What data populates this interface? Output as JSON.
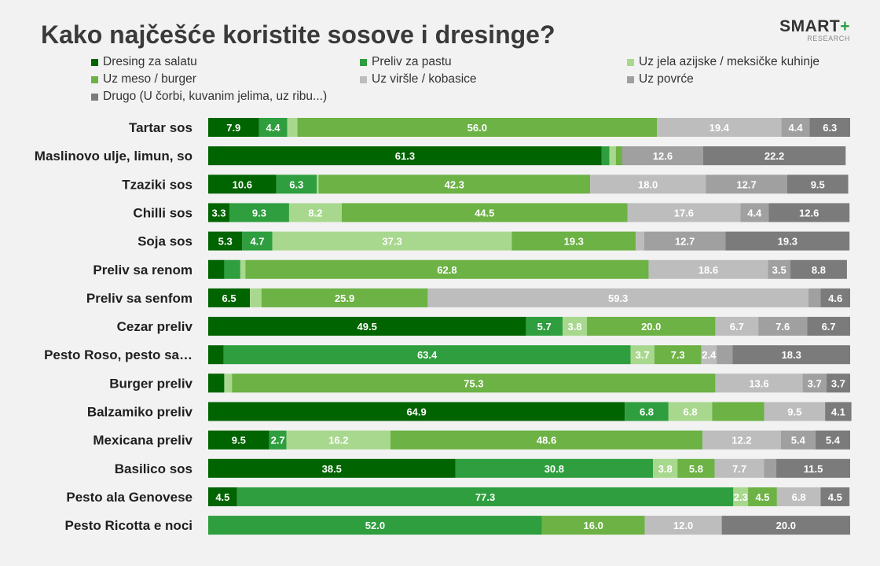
{
  "header": {
    "title": "Kako najčešće koristite sosove i dresinge?",
    "logo_text": "SMART",
    "logo_plus": "+",
    "logo_sub": "RESEARCH"
  },
  "legend": [
    {
      "label": "Dresing za salatu",
      "color": "#006400"
    },
    {
      "label": "Preliv za pastu",
      "color": "#2e9e3e"
    },
    {
      "label": "Uz jela azijske / meksičke kuhinje",
      "color": "#a8d88e"
    },
    {
      "label": "Uz meso / burger",
      "color": "#6cb244"
    },
    {
      "label": "Uz viršle / kobasice",
      "color": "#bdbdbd"
    },
    {
      "label": "Uz povrće",
      "color": "#a0a0a0"
    },
    {
      "label": "Drugo (U čorbi, kuvanim jelima, uz ribu...)",
      "color": "#7b7b7b"
    }
  ],
  "chart_data": {
    "type": "bar",
    "orientation": "horizontal",
    "stacked": true,
    "title": "Kako najčešće koristite sosove i dresinge?",
    "xlim": [
      0,
      100
    ],
    "categories": [
      "Tartar sos",
      "Maslinovo ulje, limun, so",
      "Tzaziki sos",
      "Chilli sos",
      "Soja sos",
      "Preliv sa renom",
      "Preliv sa senfom",
      "Cezar preliv",
      "Pesto Roso, pesto sa…",
      "Burger preliv",
      "Balzamiko preliv",
      "Mexicana preliv",
      "Basilico sos",
      "Pesto ala Genovese",
      "Pesto Ricotta e noci"
    ],
    "series": [
      {
        "name": "Dresing za salatu",
        "values": [
          7.9,
          61.3,
          10.6,
          3.3,
          5.3,
          2.5,
          6.5,
          49.5,
          2.4,
          2.5,
          64.9,
          9.5,
          38.5,
          4.5,
          0
        ]
      },
      {
        "name": "Preliv za pastu",
        "values": [
          4.4,
          1.2,
          6.3,
          9.3,
          4.7,
          2.5,
          0,
          5.7,
          63.4,
          0,
          6.8,
          2.7,
          30.8,
          77.3,
          52.0
        ]
      },
      {
        "name": "Uz jela azijske / meksičke kuhinje",
        "values": [
          1.6,
          1.0,
          0.3,
          8.2,
          37.3,
          0.8,
          1.8,
          3.8,
          3.7,
          1.2,
          6.8,
          16.2,
          3.8,
          2.3,
          0
        ]
      },
      {
        "name": "Uz meso / burger",
        "values": [
          56.0,
          1.0,
          42.3,
          44.5,
          19.3,
          62.8,
          25.9,
          20.0,
          7.3,
          75.3,
          8.1,
          48.6,
          5.8,
          4.5,
          16.0
        ]
      },
      {
        "name": "Uz viršle / kobasice",
        "values": [
          19.4,
          0,
          18.0,
          17.6,
          1.3,
          18.6,
          59.3,
          6.7,
          2.4,
          13.6,
          9.5,
          12.2,
          7.7,
          6.8,
          12.0
        ]
      },
      {
        "name": "Uz povrće",
        "values": [
          4.4,
          12.6,
          12.7,
          4.4,
          12.7,
          3.5,
          1.9,
          7.6,
          2.5,
          3.7,
          0,
          5.4,
          1.9,
          0,
          0
        ]
      },
      {
        "name": "Drugo (U čorbi, kuvanim jelima, uz ribu...)",
        "values": [
          6.3,
          22.2,
          9.5,
          12.6,
          19.3,
          8.8,
          4.6,
          6.7,
          18.3,
          3.7,
          4.1,
          5.4,
          11.5,
          4.5,
          20.0
        ]
      }
    ],
    "data_labels": [
      [
        "7.9",
        "4.4",
        "",
        "56.0",
        "19.4",
        "4.4",
        "6.3"
      ],
      [
        "61.3",
        "",
        "",
        "",
        "",
        "12.6",
        "22.2"
      ],
      [
        "10.6",
        "6.3",
        "",
        "42.3",
        "18.0",
        "12.7",
        "9.5"
      ],
      [
        "3.3",
        "9.3",
        "8.2",
        "44.5",
        "17.6",
        "4.4",
        "12.6"
      ],
      [
        "5.3",
        "4.7",
        "37.3",
        "19.3",
        "",
        "12.7",
        "19.3"
      ],
      [
        "",
        "",
        "",
        "62.8",
        "18.6",
        "3.5",
        "8.8"
      ],
      [
        "6.5",
        "",
        "",
        "25.9",
        "59.3",
        "",
        "4.6"
      ],
      [
        "49.5",
        "5.7",
        "3.8",
        "20.0",
        "6.7",
        "7.6",
        "6.7"
      ],
      [
        "",
        "63.4",
        "3.7",
        "7.3",
        "2.4",
        "",
        "18.3"
      ],
      [
        "",
        "",
        "",
        "75.3",
        "13.6",
        "3.7",
        "3.7"
      ],
      [
        "64.9",
        "6.8",
        "6.8",
        "",
        "9.5",
        "",
        "4.1"
      ],
      [
        "9.5",
        "2.7",
        "16.2",
        "48.6",
        "12.2",
        "5.4",
        "5.4"
      ],
      [
        "38.5",
        "30.8",
        "3.8",
        "5.8",
        "7.7",
        "",
        "11.5"
      ],
      [
        "4.5",
        "77.3",
        "2.3",
        "4.5",
        "6.8",
        "",
        "4.5"
      ],
      [
        "",
        "52.0",
        "",
        "16.0",
        "12.0",
        "",
        "20.0"
      ]
    ],
    "label_colors": [
      "#ffffff",
      "#ffffff",
      "#ffffff",
      "#ffffff",
      "#ffffff",
      "#ffffff",
      "#ffffff"
    ],
    "colors": [
      "#006400",
      "#2e9e3e",
      "#a8d88e",
      "#6cb244",
      "#bdbdbd",
      "#a0a0a0",
      "#7b7b7b"
    ]
  }
}
